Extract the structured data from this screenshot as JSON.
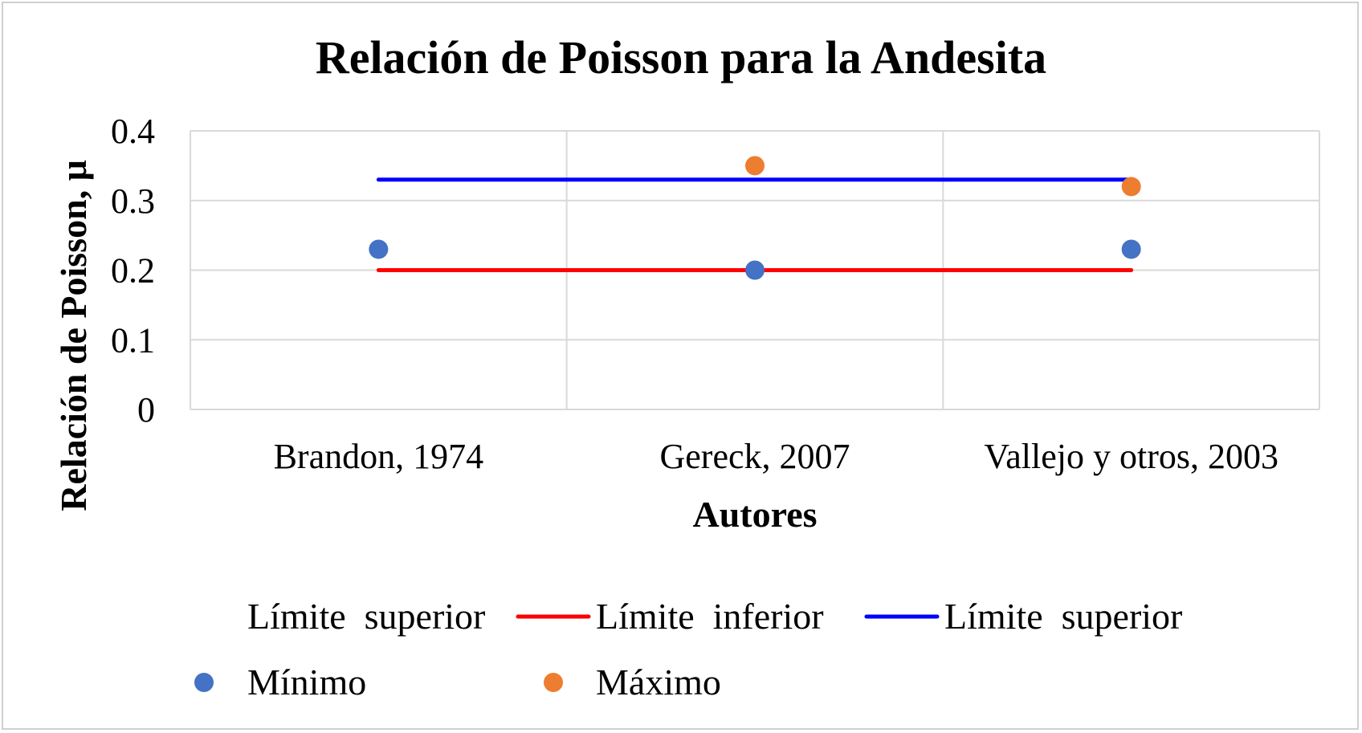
{
  "chart_data": {
    "type": "scatter",
    "title": "Relación de Poisson para la Andesita",
    "xlabel": "Autores",
    "ylabel": "Relación de Poisson, μ",
    "categories": [
      "Brandon, 1974",
      "Gereck, 2007",
      "Vallejo y otros, 2003"
    ],
    "ylim": [
      0,
      0.4
    ],
    "yticks": [
      "0",
      "0.1",
      "0.2",
      "0.3",
      "0.4"
    ],
    "grid": true,
    "legend_position": "bottom",
    "series": [
      {
        "name": "Límite  superior",
        "kind": "line",
        "color": "#0000ff",
        "values": [
          0.33,
          0.33,
          0.33
        ]
      },
      {
        "name": "Límite  inferior",
        "kind": "line",
        "color": "#ff0000",
        "values": [
          0.2,
          0.2,
          0.2
        ]
      },
      {
        "name": "Mínimo",
        "kind": "point",
        "color": "#4472c4",
        "values": [
          0.23,
          0.2,
          0.23
        ]
      },
      {
        "name": "Máximo",
        "kind": "point",
        "color": "#ed7d31",
        "values": [
          null,
          0.35,
          0.32
        ]
      }
    ],
    "legend": [
      {
        "label": "Límite  superior",
        "marker": "none",
        "color": ""
      },
      {
        "label": "Límite  inferior",
        "marker": "line",
        "color": "#ff0000"
      },
      {
        "label": "Límite  superior",
        "marker": "line",
        "color": "#0000ff"
      },
      {
        "label": "Mínimo",
        "marker": "dot",
        "color": "#4472c4"
      },
      {
        "label": "Máximo",
        "marker": "dot",
        "color": "#ed7d31"
      }
    ]
  }
}
